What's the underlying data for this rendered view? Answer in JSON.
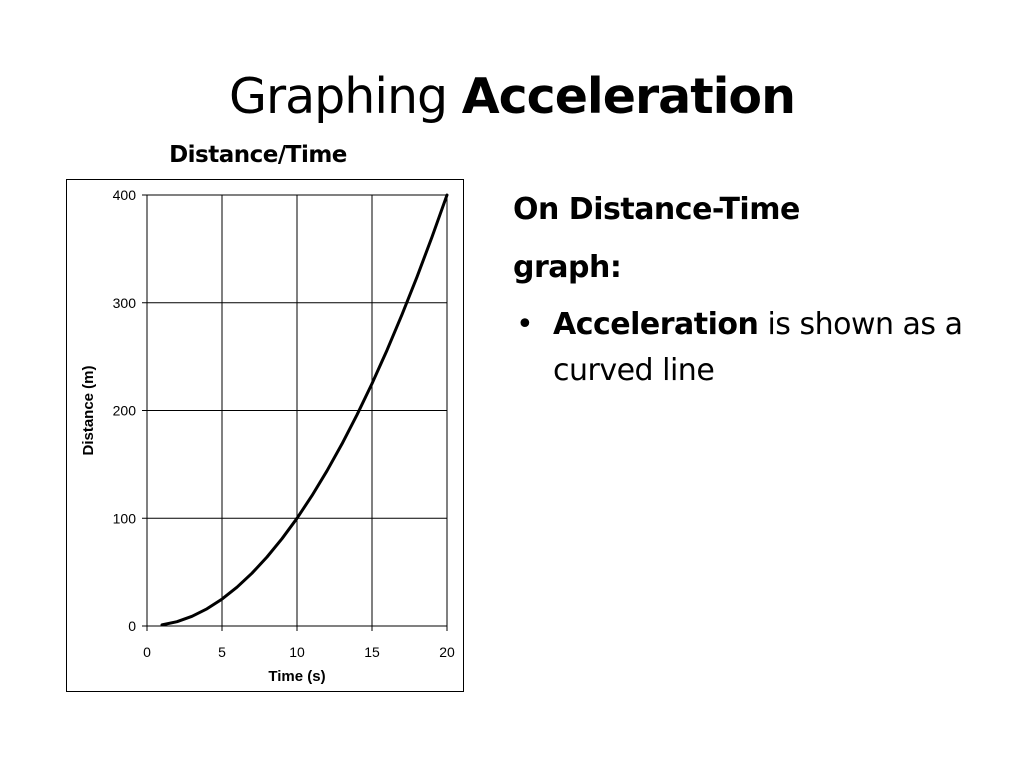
{
  "slide": {
    "title_plain": "Graphing",
    "title_bold": "Acceleration"
  },
  "chart_heading": "Distance/Time",
  "text_panel": {
    "heading_line1": "On Distance-Time",
    "heading_line2": "graph:",
    "bullet_marker": "•",
    "bullet_bold": "Acceleration",
    "bullet_rest": "is shown as a curved line"
  },
  "chart_data": {
    "type": "line",
    "title": "Distance/Time",
    "xlabel": "Time (s)",
    "ylabel": "Distance (m)",
    "xlim": [
      0,
      20
    ],
    "ylim": [
      0,
      400
    ],
    "x_ticks": [
      0,
      5,
      10,
      15,
      20
    ],
    "y_ticks": [
      0,
      100,
      200,
      300,
      400
    ],
    "grid": true,
    "legend": "none",
    "series": [
      {
        "x": [
          1,
          2,
          3,
          4,
          5,
          6,
          7,
          8,
          9,
          10,
          11,
          12,
          13,
          14,
          15,
          16,
          17,
          18,
          19,
          20
        ],
        "y": [
          1,
          4,
          9,
          16,
          25,
          36,
          49,
          64,
          81,
          100,
          121,
          144,
          169,
          196,
          225,
          256,
          289,
          324,
          361,
          400
        ],
        "color": "#000000"
      }
    ]
  }
}
